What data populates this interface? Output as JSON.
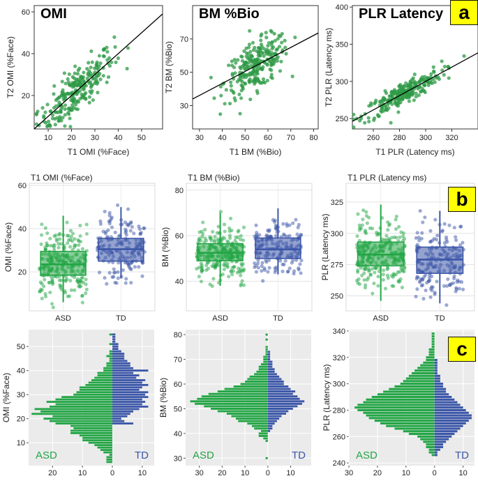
{
  "panel_labels": {
    "a": "a",
    "b": "b",
    "c": "c"
  },
  "colors": {
    "asd": "#23a545",
    "td": "#3b56a8",
    "scatter": "#2e9a45",
    "hist_bg": "#ebebeb"
  },
  "chart_data": [
    {
      "id": "scatter-omi",
      "type": "scatter",
      "title": "OMI",
      "xlabel": "T1 OMI (%Face)",
      "ylabel": "T2 OMI (%Face)",
      "xlim": [
        4,
        59
      ],
      "ylim": [
        4,
        63
      ],
      "xticks": [
        10,
        20,
        30,
        40,
        50
      ],
      "yticks": [
        20,
        40,
        60
      ],
      "points_n": 260,
      "slope": 1.0,
      "intercept": 0.0,
      "x_mean": 22,
      "x_sd": 8,
      "noise_sd": 5.5
    },
    {
      "id": "scatter-bm",
      "type": "scatter",
      "title": "BM %Bio",
      "xlabel": "T1 BM (%Bio)",
      "ylabel": "T2 BM (%Bio)",
      "xlim": [
        27,
        82
      ],
      "ylim": [
        16,
        90
      ],
      "xticks": [
        30,
        40,
        50,
        60,
        70,
        80
      ],
      "yticks": [
        30,
        50,
        70
      ],
      "points_n": 260,
      "slope": 0.72,
      "intercept": 14.5,
      "x_mean": 55,
      "x_sd": 7,
      "noise_sd": 7
    },
    {
      "id": "scatter-plr",
      "type": "scatter",
      "title": "PLR Latency",
      "xlabel": "T1 PLR (Latency ms)",
      "ylabel": "T2 PLR (Latency ms)",
      "xlim": [
        244,
        340
      ],
      "ylim": [
        236,
        402
      ],
      "xticks": [
        260,
        280,
        300,
        320
      ],
      "yticks": [
        250,
        300,
        350,
        400
      ],
      "points_n": 250,
      "slope": 0.96,
      "intercept": 12,
      "x_mean": 282,
      "x_sd": 15,
      "noise_sd": 7.5
    },
    {
      "id": "box-omi",
      "type": "box",
      "title": "T1 OMI (%Face)",
      "ylabel": "OMI (%Face)",
      "categories": [
        "ASD",
        "TD"
      ],
      "ylim": [
        2,
        61
      ],
      "yticks": [
        20,
        40,
        60
      ],
      "groups": [
        {
          "name": "ASD",
          "q1": 18.5,
          "median": 23.5,
          "q3": 29.5,
          "whisker_low": 6,
          "whisker_high": 46,
          "n": 260
        },
        {
          "name": "TD",
          "q1": 25,
          "median": 30.5,
          "q3": 35.5,
          "whisker_low": 17,
          "whisker_high": 50,
          "n": 180
        }
      ]
    },
    {
      "id": "box-bm",
      "type": "box",
      "title": "T1 BM (%Bio)",
      "ylabel": "BM (%Bio)",
      "categories": [
        "ASD",
        "TD"
      ],
      "ylim": [
        27,
        83
      ],
      "yticks": [
        40,
        60,
        80
      ],
      "groups": [
        {
          "name": "ASD",
          "q1": 49,
          "median": 52.5,
          "q3": 56.5,
          "whisker_low": 38,
          "whisker_high": 70,
          "n": 260
        },
        {
          "name": "TD",
          "q1": 50,
          "median": 54,
          "q3": 59,
          "whisker_low": 43,
          "whisker_high": 72,
          "n": 180
        }
      ]
    },
    {
      "id": "box-plr",
      "type": "box",
      "title": "T1 PLR (Latency ms)",
      "ylabel": "PLR (Latency ms)",
      "categories": [
        "ASD",
        "TD"
      ],
      "ylim": [
        238,
        340
      ],
      "yticks": [
        250,
        275,
        300,
        325
      ],
      "groups": [
        {
          "name": "ASD",
          "q1": 274,
          "median": 283,
          "q3": 293,
          "whisker_low": 246,
          "whisker_high": 323,
          "n": 260
        },
        {
          "name": "TD",
          "q1": 268,
          "median": 279,
          "q3": 289,
          "whisker_low": 244,
          "whisker_high": 318,
          "n": 180
        }
      ]
    },
    {
      "id": "hist-omi",
      "type": "bar",
      "orientation": "horizontal-mirrored",
      "ylabel": "OMI (%Face)",
      "ylim": [
        0.5,
        57
      ],
      "yticks": [
        10,
        20,
        30,
        40,
        50
      ],
      "xlim": [
        -28,
        14
      ],
      "xticks": [
        -20,
        -10,
        0,
        10
      ],
      "xticklabels": [
        "20",
        "10",
        "0",
        "10"
      ],
      "left_label": "ASD",
      "right_label": "TD",
      "bins": [
        2,
        3,
        4,
        5,
        6,
        7,
        8,
        9,
        10,
        11,
        12,
        13,
        14,
        15,
        16,
        17,
        18,
        19,
        20,
        21,
        22,
        23,
        24,
        25,
        26,
        27,
        28,
        29,
        30,
        31,
        32,
        33,
        34,
        35,
        36,
        37,
        38,
        39,
        40,
        41,
        42,
        43,
        44,
        45,
        46,
        47,
        48,
        49,
        50,
        51,
        52,
        53,
        54,
        55
      ],
      "asd": [
        2,
        2,
        2,
        1,
        3,
        4,
        5,
        6,
        8,
        10,
        10,
        11,
        14,
        14,
        13,
        14,
        19,
        21,
        23,
        20,
        27,
        24,
        26,
        21,
        19,
        22,
        19,
        17,
        13,
        12,
        11,
        11,
        9,
        8,
        7,
        6,
        5,
        5,
        3,
        3,
        2,
        2,
        1,
        1,
        2,
        1,
        1,
        0,
        0,
        1,
        0,
        0,
        0,
        1
      ],
      "td": [
        0,
        0,
        0,
        0,
        0,
        0,
        0,
        0,
        0,
        0,
        0,
        0,
        0,
        0,
        0,
        0,
        7,
        4,
        3,
        5,
        6,
        7,
        9,
        12,
        10,
        11,
        10,
        12,
        11,
        12,
        9,
        10,
        12,
        10,
        11,
        8,
        9,
        7,
        12,
        7,
        6,
        6,
        5,
        4,
        4,
        4,
        3,
        2,
        2,
        2,
        1,
        1,
        1,
        1
      ]
    },
    {
      "id": "hist-bm",
      "type": "bar",
      "orientation": "horizontal-mirrored",
      "ylabel": "BM (%Bio)",
      "ylim": [
        27,
        82
      ],
      "yticks": [
        30,
        40,
        50,
        60,
        70,
        80
      ],
      "xlim": [
        -36,
        19
      ],
      "xticks": [
        -30,
        -20,
        -10,
        0,
        10
      ],
      "xticklabels": [
        "30",
        "20",
        "10",
        "0",
        "10"
      ],
      "left_label": "ASD",
      "right_label": "TD",
      "bins": [
        30,
        37,
        38,
        39,
        40,
        41,
        42,
        43,
        44,
        45,
        46,
        47,
        48,
        49,
        50,
        51,
        52,
        53,
        54,
        55,
        56,
        57,
        58,
        59,
        60,
        61,
        62,
        63,
        64,
        65,
        66,
        67,
        68,
        69,
        70,
        71,
        72,
        73,
        74,
        75,
        76,
        77,
        78,
        79,
        80
      ],
      "asd": [
        1,
        1,
        2,
        4,
        4,
        3,
        6,
        7,
        9,
        13,
        14,
        16,
        18,
        22,
        25,
        28,
        32,
        34,
        31,
        29,
        26,
        22,
        19,
        15,
        12,
        10,
        9,
        8,
        6,
        5,
        4,
        4,
        3,
        2,
        2,
        2,
        1,
        1,
        1,
        1,
        0,
        0,
        1,
        0,
        1
      ],
      "td": [
        0,
        0,
        0,
        0,
        0,
        1,
        2,
        2,
        3,
        4,
        5,
        6,
        8,
        9,
        11,
        13,
        15,
        16,
        14,
        13,
        11,
        12,
        10,
        9,
        7,
        7,
        6,
        5,
        4,
        3,
        3,
        2,
        2,
        2,
        1,
        1,
        1,
        1,
        0,
        0,
        0,
        0,
        0,
        0,
        0
      ]
    },
    {
      "id": "hist-plr",
      "type": "bar",
      "orientation": "horizontal-mirrored",
      "ylabel": "PLR (Latency ms)",
      "ylim": [
        238,
        341
      ],
      "yticks": [
        240,
        260,
        280,
        300,
        320,
        340
      ],
      "xlim": [
        -30,
        14
      ],
      "xticks": [
        -30,
        -20,
        -10,
        0,
        10
      ],
      "xticklabels": [
        "30",
        "20",
        "10",
        "0",
        "10"
      ],
      "left_label": "ASD",
      "right_label": "TD",
      "bins": [
        246,
        248,
        250,
        252,
        254,
        256,
        258,
        260,
        262,
        264,
        266,
        268,
        270,
        272,
        274,
        276,
        278,
        280,
        282,
        284,
        286,
        288,
        290,
        292,
        294,
        296,
        298,
        300,
        302,
        304,
        306,
        308,
        310,
        312,
        314,
        316,
        318,
        320,
        322,
        324,
        326,
        328,
        330,
        332,
        334,
        336,
        338
      ],
      "asd": [
        1,
        2,
        2,
        3,
        3,
        4,
        5,
        6,
        9,
        11,
        14,
        17,
        19,
        21,
        23,
        24,
        25,
        27,
        28,
        27,
        25,
        24,
        22,
        20,
        18,
        16,
        14,
        12,
        11,
        10,
        9,
        8,
        7,
        6,
        5,
        4,
        3,
        3,
        2,
        2,
        2,
        1,
        1,
        1,
        1,
        1,
        1
      ],
      "td": [
        1,
        1,
        2,
        3,
        3,
        4,
        5,
        6,
        7,
        8,
        9,
        10,
        11,
        12,
        13,
        13,
        12,
        11,
        10,
        9,
        8,
        7,
        6,
        5,
        4,
        4,
        3,
        3,
        2,
        2,
        2,
        1,
        1,
        1,
        1,
        1,
        1,
        0,
        0,
        0,
        0,
        0,
        0,
        0,
        0,
        0,
        0
      ]
    }
  ]
}
